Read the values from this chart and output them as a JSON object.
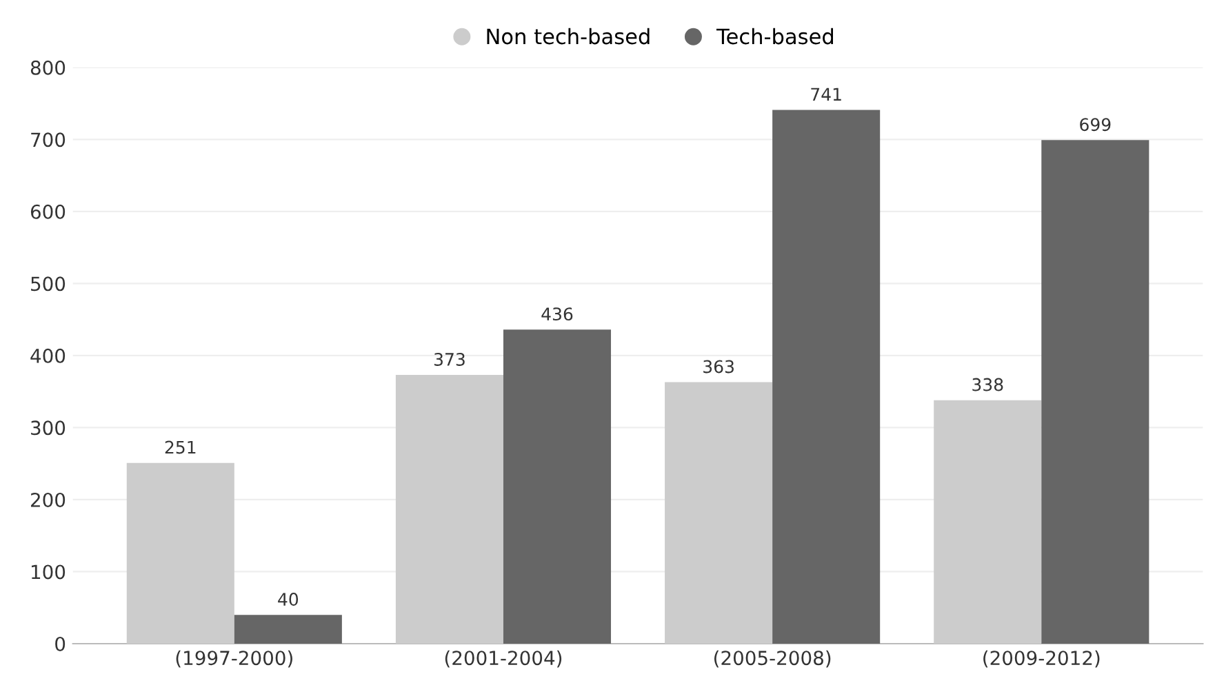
{
  "chart_data": {
    "type": "bar",
    "categories": [
      "(1997-2000)",
      "(2001-2004)",
      "(2005-2008)",
      "(2009-2012)"
    ],
    "series": [
      {
        "name": "Non tech-based",
        "color": "#cccccc",
        "values": [
          251,
          373,
          363,
          338
        ]
      },
      {
        "name": "Tech-based",
        "color": "#666666",
        "values": [
          40,
          436,
          741,
          699
        ]
      }
    ],
    "ylim": [
      0,
      800
    ],
    "yticks": [
      0,
      100,
      200,
      300,
      400,
      500,
      600,
      700,
      800
    ],
    "grid": "y",
    "legend": "top",
    "data_labels": true
  }
}
